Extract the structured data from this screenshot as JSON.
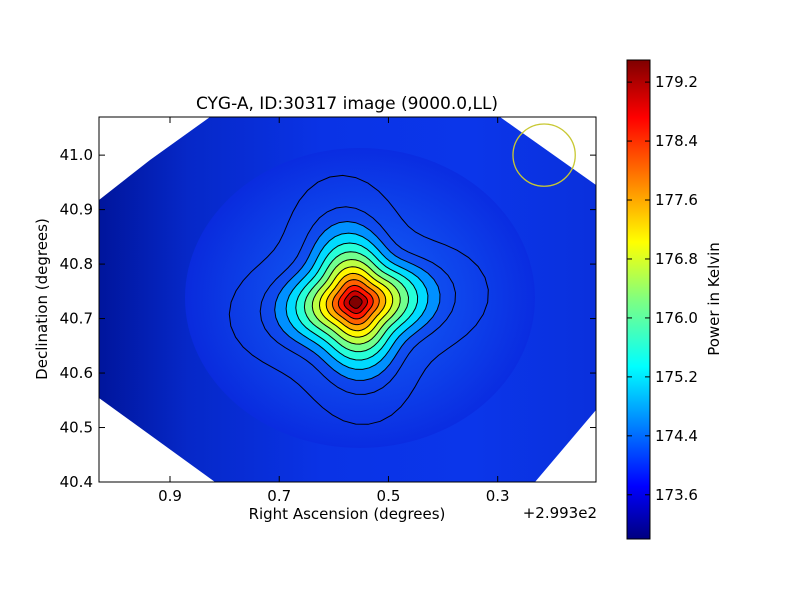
{
  "chart_data": {
    "type": "heatmap",
    "title": "CYG-A, ID:30317 image (9000.0,LL)",
    "xlabel": "Right Ascension (degrees)",
    "ylabel": "Declination (degrees)",
    "x_offset_label": "+2.993e2",
    "x_offset": 299.3,
    "xlim": [
      1.03,
      0.12
    ],
    "ylim": [
      40.4,
      41.07
    ],
    "x_ticks": [
      {
        "value": 0.9,
        "label": "0.9"
      },
      {
        "value": 0.7,
        "label": "0.7"
      },
      {
        "value": 0.5,
        "label": "0.5"
      },
      {
        "value": 0.3,
        "label": "0.3"
      }
    ],
    "y_ticks": [
      {
        "value": 40.4,
        "label": "40.4"
      },
      {
        "value": 40.5,
        "label": "40.5"
      },
      {
        "value": 40.6,
        "label": "40.6"
      },
      {
        "value": 40.7,
        "label": "40.7"
      },
      {
        "value": 40.8,
        "label": "40.8"
      },
      {
        "value": 40.9,
        "label": "40.9"
      },
      {
        "value": 41.0,
        "label": "41.0"
      }
    ],
    "source_peak": {
      "ra": 0.56,
      "dec": 40.73
    },
    "peak_value": 179.5,
    "background_value": 173.3,
    "contour_count": 13,
    "beam": {
      "ra": 0.215,
      "dec": 41.0,
      "radius_deg": 0.057,
      "color": "#c8c832"
    },
    "colorbar": {
      "label": "Power in Kelvin",
      "range": [
        173.0,
        179.5
      ],
      "ticks": [
        {
          "value": 179.2,
          "label": "179.2"
        },
        {
          "value": 178.4,
          "label": "178.4"
        },
        {
          "value": 177.6,
          "label": "177.6"
        },
        {
          "value": 176.8,
          "label": "176.8"
        },
        {
          "value": 176.0,
          "label": "176.0"
        },
        {
          "value": 175.2,
          "label": "175.2"
        },
        {
          "value": 174.4,
          "label": "174.4"
        },
        {
          "value": 173.6,
          "label": "173.6"
        }
      ],
      "colormap": "jet"
    }
  }
}
